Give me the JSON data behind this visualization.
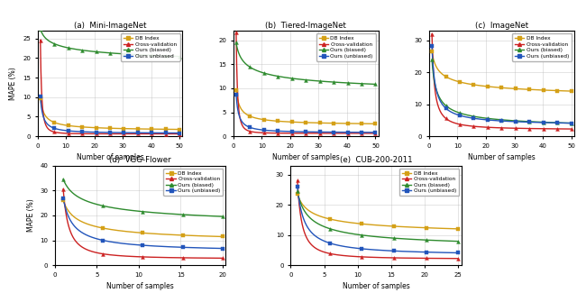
{
  "panels": [
    {
      "title": "(a)  Mini-ImageNet",
      "ylim": [
        0,
        27
      ],
      "yticks": [
        0,
        5,
        10,
        15,
        20,
        25
      ],
      "xticks": [
        0,
        10,
        20,
        30,
        40,
        50
      ],
      "xmax": 50,
      "legend_unbiased": "Ours unbiased",
      "db": {
        "a": 8.5,
        "b": 0.75,
        "c": 1.3
      },
      "cv": {
        "a": 24.0,
        "b": 2.2,
        "c": 0.6
      },
      "bi": {
        "a": 14.0,
        "b": 0.18,
        "c": 13.5
      },
      "un": {
        "a": 9.5,
        "b": 1.1,
        "c": 0.7
      }
    },
    {
      "title": "(b)  Tiered-ImageNet",
      "ylim": [
        0,
        22
      ],
      "yticks": [
        0,
        5,
        10,
        15,
        20
      ],
      "xticks": [
        0,
        10,
        20,
        30,
        40,
        50
      ],
      "xmax": 50,
      "legend_unbiased": "Ours (unbiased)",
      "db": {
        "a": 7.5,
        "b": 0.75,
        "c": 2.2
      },
      "cv": {
        "a": 21.0,
        "b": 2.2,
        "c": 0.6
      },
      "bi": {
        "a": 13.0,
        "b": 0.28,
        "c": 6.5
      },
      "un": {
        "a": 8.0,
        "b": 1.1,
        "c": 0.7
      }
    },
    {
      "title": "(c)  ImageNet",
      "ylim": [
        0,
        33
      ],
      "yticks": [
        0,
        10,
        20,
        30
      ],
      "xticks": [
        0,
        10,
        20,
        30,
        40,
        50
      ],
      "xmax": 50,
      "legend_unbiased": "Ours (unbiased)",
      "db": {
        "a": 16.0,
        "b": 0.38,
        "c": 10.5
      },
      "cv": {
        "a": 30.0,
        "b": 1.2,
        "c": 2.0
      },
      "bi": {
        "a": 22.0,
        "b": 0.6,
        "c": 2.0
      },
      "un": {
        "a": 25.0,
        "b": 0.85,
        "c": 3.2
      }
    },
    {
      "title": "(d)  VGG-Flower",
      "ylim": [
        0,
        40
      ],
      "yticks": [
        0,
        10,
        20,
        30,
        40
      ],
      "xticks": [
        0,
        5,
        10,
        15,
        20
      ],
      "xmax": 20,
      "legend_unbiased": "Ours (unbiased)",
      "db": {
        "a": 18.0,
        "b": 0.55,
        "c": 8.0
      },
      "cv": {
        "a": 28.0,
        "b": 1.5,
        "c": 2.5
      },
      "bi": {
        "a": 22.0,
        "b": 0.38,
        "c": 12.5
      },
      "un": {
        "a": 22.0,
        "b": 0.85,
        "c": 5.0
      }
    },
    {
      "title": "(e)  CUB-200-2011",
      "ylim": [
        0,
        33
      ],
      "yticks": [
        0,
        10,
        20,
        30
      ],
      "xticks": [
        0,
        5,
        10,
        15,
        20,
        25
      ],
      "xmax": 25,
      "legend_unbiased": "Ours (unbiased)",
      "db": {
        "a": 15.0,
        "b": 0.45,
        "c": 8.5
      },
      "cv": {
        "a": 26.0,
        "b": 1.5,
        "c": 2.0
      },
      "bi": {
        "a": 20.0,
        "b": 0.55,
        "c": 4.5
      },
      "un": {
        "a": 23.0,
        "b": 0.95,
        "c": 3.0
      }
    }
  ],
  "colors": {
    "db_index": "#D4A017",
    "cross_val": "#CC2222",
    "biased": "#2E8B2E",
    "unbiased": "#2255BB"
  }
}
